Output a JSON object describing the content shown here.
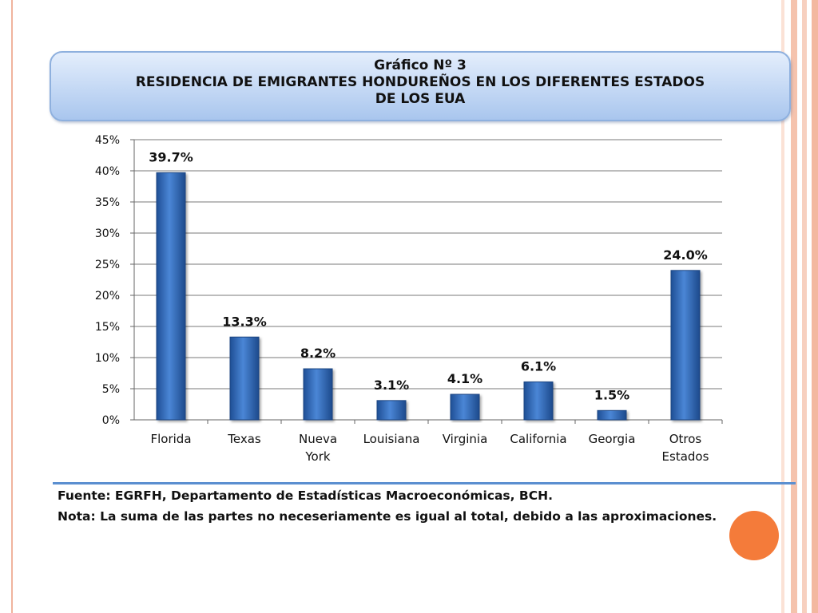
{
  "title": {
    "line1": "Gráfico Nº 3",
    "line2": "RESIDENCIA DE EMIGRANTES HONDUREÑOS EN LOS DIFERENTES ESTADOS",
    "line3": "DE LOS EUA"
  },
  "chart_data": {
    "type": "bar",
    "categories": [
      [
        "Florida"
      ],
      [
        "Texas"
      ],
      [
        "Nueva",
        "York"
      ],
      [
        "Louisiana"
      ],
      [
        "Virginia"
      ],
      [
        "California"
      ],
      [
        "Georgia"
      ],
      [
        "Otros",
        "Estados"
      ]
    ],
    "values": [
      39.7,
      13.3,
      8.2,
      3.1,
      4.1,
      6.1,
      1.5,
      24.0
    ],
    "data_labels": [
      "39.7%",
      "13.3%",
      "8.2%",
      "3.1%",
      "4.1%",
      "6.1%",
      "1.5%",
      "24.0%"
    ],
    "yticks": [
      "0%",
      "5%",
      "10%",
      "15%",
      "20%",
      "25%",
      "30%",
      "35%",
      "40%",
      "45%"
    ],
    "ylim": [
      0,
      45
    ],
    "grid": true,
    "bar_color": "#2f6bbf",
    "xlabel": "",
    "ylabel": ""
  },
  "footer": {
    "source": "Fuente: EGRFH, Departamento de Estadísticas Macroeconómicas, BCH.",
    "note": "Nota: La suma de las partes no neceseriamente es igual al total, debido a las aproximaciones."
  },
  "colors": {
    "accent_orange": "#f47b3a",
    "rule_blue": "#5b8fd0"
  }
}
